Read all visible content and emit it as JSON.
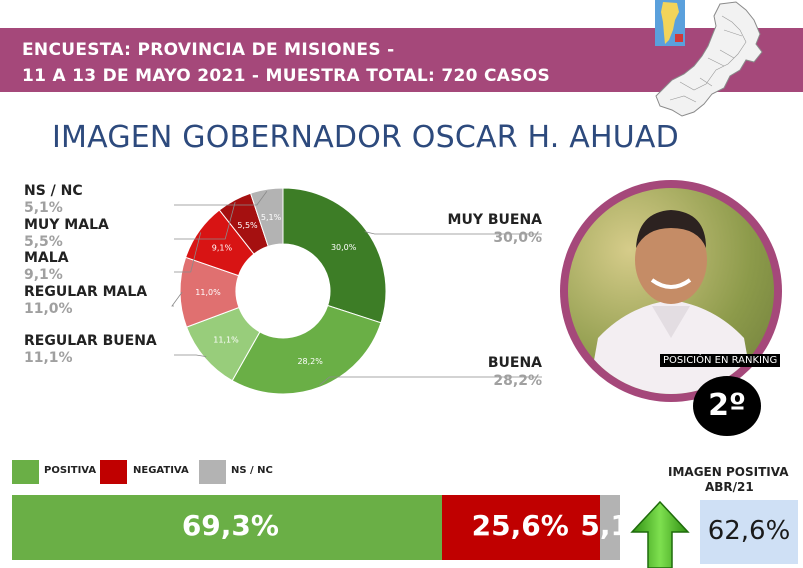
{
  "header": {
    "line1": "ENCUESTA: PROVINCIA DE MISIONES -",
    "line2": "11 A 13 DE MAYO 2021 - MUESTRA TOTAL: 720 CASOS"
  },
  "title": "IMAGEN GOBERNADOR OSCAR H. AHUAD",
  "chart_data": [
    {
      "type": "pie",
      "variant": "donut",
      "title": "IMAGEN GOBERNADOR OSCAR H. AHUAD",
      "categories": [
        "MUY BUENA",
        "BUENA",
        "REGULAR BUENA",
        "REGULAR MALA",
        "MALA",
        "MUY MALA",
        "NS / NC"
      ],
      "values": [
        30.0,
        28.2,
        11.1,
        11.0,
        9.1,
        5.5,
        5.1
      ],
      "value_labels": [
        "30,0%",
        "28,2%",
        "11,1%",
        "11,0%",
        "9,1%",
        "5,5%",
        "5,1%"
      ],
      "slice_labels": [
        "30,0%",
        "28,2%",
        "11,1%",
        "11,0%",
        "9,1%",
        "5,5%",
        "5,1%"
      ],
      "colors": [
        "#3d7d26",
        "#6aaf46",
        "#98cd7b",
        "#e07070",
        "#d81414",
        "#a51010",
        "#b3b3b3"
      ]
    },
    {
      "type": "bar",
      "orientation": "horizontal-stacked",
      "categories": [
        "POSITIVA",
        "NEGATIVA",
        "NS / NC"
      ],
      "values": [
        69.3,
        25.6,
        5.1
      ],
      "value_labels": [
        "69,3%",
        "25,6%",
        "5,1%"
      ],
      "colors": [
        "#6aaf46",
        "#c00000",
        "#b3b3b3"
      ]
    }
  ],
  "ranking": {
    "label": "POSICIÓN EN RANKING",
    "value": "2º"
  },
  "previous": {
    "title_line1": "IMAGEN POSITIVA",
    "title_line2": "ABR/21",
    "value": "62,6%",
    "trend": "up"
  },
  "icons": {
    "map": "misiones-map-icon",
    "argentina": "argentina-map-icon",
    "arrow": "arrow-up-icon"
  }
}
